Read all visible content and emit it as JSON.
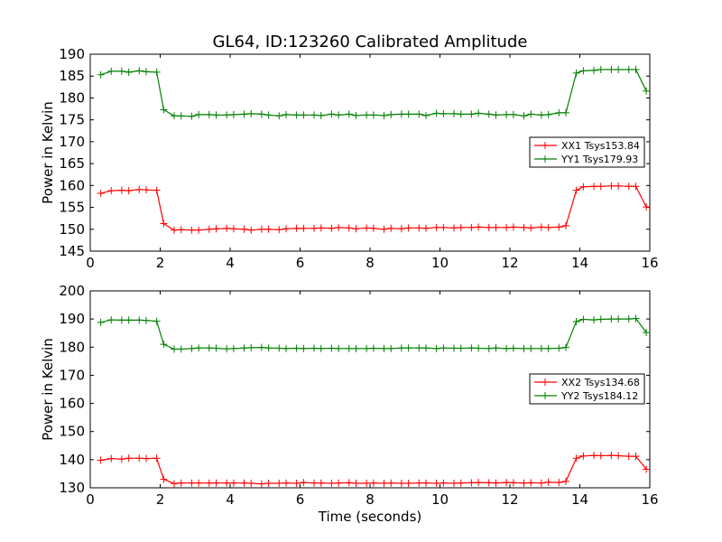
{
  "chart_data": [
    {
      "type": "line",
      "title": "GL64, ID:123260 Calibrated Amplitude",
      "xlabel": "",
      "ylabel": "Power in Kelvin",
      "xlim": [
        0,
        16
      ],
      "ylim": [
        145,
        190
      ],
      "xticks": [
        "0",
        "2",
        "4",
        "6",
        "8",
        "10",
        "12",
        "14",
        "16"
      ],
      "yticks": [
        "145",
        "150",
        "155",
        "160",
        "165",
        "170",
        "175",
        "180",
        "185",
        "190"
      ],
      "legend_position": "center-right",
      "series": [
        {
          "name": "XX1 Tsys153.84",
          "color": "#ff0000",
          "x": [
            0.3,
            0.6,
            0.9,
            1.1,
            1.4,
            1.6,
            1.9,
            2.1,
            2.4,
            2.6,
            2.9,
            3.1,
            3.4,
            3.6,
            3.9,
            4.1,
            4.4,
            4.6,
            4.9,
            5.1,
            5.4,
            5.6,
            5.9,
            6.1,
            6.4,
            6.6,
            6.9,
            7.1,
            7.4,
            7.6,
            7.9,
            8.1,
            8.4,
            8.6,
            8.9,
            9.1,
            9.4,
            9.6,
            9.9,
            10.1,
            10.4,
            10.6,
            10.9,
            11.1,
            11.4,
            11.6,
            11.9,
            12.1,
            12.4,
            12.6,
            12.9,
            13.1,
            13.4,
            13.6,
            13.9,
            14.1,
            14.4,
            14.6,
            14.9,
            15.1,
            15.4,
            15.6,
            15.9
          ],
          "y": [
            158.2,
            158.8,
            158.9,
            158.8,
            159.1,
            159.0,
            158.9,
            151.3,
            149.8,
            149.9,
            149.8,
            149.8,
            150.0,
            150.1,
            150.2,
            150.1,
            150.0,
            149.8,
            150.0,
            150.0,
            149.9,
            150.1,
            150.2,
            150.2,
            150.2,
            150.3,
            150.2,
            150.4,
            150.3,
            150.1,
            150.3,
            150.2,
            150.0,
            150.2,
            150.1,
            150.3,
            150.3,
            150.2,
            150.4,
            150.4,
            150.3,
            150.4,
            150.4,
            150.5,
            150.4,
            150.4,
            150.4,
            150.5,
            150.4,
            150.3,
            150.5,
            150.4,
            150.5,
            150.8,
            158.9,
            159.7,
            159.8,
            159.8,
            159.9,
            159.9,
            159.8,
            159.8,
            155.1
          ]
        },
        {
          "name": "YY1 Tsys179.93",
          "color": "#008000",
          "x": [
            0.3,
            0.6,
            0.9,
            1.1,
            1.4,
            1.6,
            1.9,
            2.1,
            2.4,
            2.6,
            2.9,
            3.1,
            3.4,
            3.6,
            3.9,
            4.1,
            4.4,
            4.6,
            4.9,
            5.1,
            5.4,
            5.6,
            5.9,
            6.1,
            6.4,
            6.6,
            6.9,
            7.1,
            7.4,
            7.6,
            7.9,
            8.1,
            8.4,
            8.6,
            8.9,
            9.1,
            9.4,
            9.6,
            9.9,
            10.1,
            10.4,
            10.6,
            10.9,
            11.1,
            11.4,
            11.6,
            11.9,
            12.1,
            12.4,
            12.6,
            12.9,
            13.1,
            13.4,
            13.6,
            13.9,
            14.1,
            14.4,
            14.6,
            14.9,
            15.1,
            15.4,
            15.6,
            15.9
          ],
          "y": [
            185.3,
            186.1,
            186.1,
            185.9,
            186.2,
            186.0,
            185.9,
            177.3,
            175.9,
            175.9,
            175.8,
            176.2,
            176.2,
            176.1,
            176.1,
            176.2,
            176.3,
            176.4,
            176.3,
            176.1,
            175.9,
            176.2,
            176.1,
            176.1,
            176.1,
            176.0,
            176.3,
            176.1,
            176.3,
            176.0,
            176.1,
            176.1,
            176.0,
            176.2,
            176.3,
            176.3,
            176.3,
            176.0,
            176.5,
            176.4,
            176.4,
            176.3,
            176.3,
            176.5,
            176.3,
            176.1,
            176.2,
            176.2,
            175.9,
            176.3,
            176.1,
            176.2,
            176.6,
            176.6,
            185.7,
            186.2,
            186.3,
            186.5,
            186.5,
            186.5,
            186.5,
            186.5,
            181.6
          ]
        }
      ]
    },
    {
      "type": "line",
      "title": "",
      "xlabel": "Time (seconds)",
      "ylabel": "Power in Kelvin",
      "xlim": [
        0,
        16
      ],
      "ylim": [
        130,
        200
      ],
      "xticks": [
        "0",
        "2",
        "4",
        "6",
        "8",
        "10",
        "12",
        "14",
        "16"
      ],
      "yticks": [
        "130",
        "140",
        "150",
        "160",
        "170",
        "180",
        "190",
        "200"
      ],
      "legend_position": "center-right",
      "series": [
        {
          "name": "XX2 Tsys134.68",
          "color": "#ff0000",
          "x": [
            0.3,
            0.6,
            0.9,
            1.1,
            1.4,
            1.6,
            1.9,
            2.1,
            2.4,
            2.6,
            2.9,
            3.1,
            3.4,
            3.6,
            3.9,
            4.1,
            4.4,
            4.6,
            4.9,
            5.1,
            5.4,
            5.6,
            5.9,
            6.1,
            6.4,
            6.6,
            6.9,
            7.1,
            7.4,
            7.6,
            7.9,
            8.1,
            8.4,
            8.6,
            8.9,
            9.1,
            9.4,
            9.6,
            9.9,
            10.1,
            10.4,
            10.6,
            10.9,
            11.1,
            11.4,
            11.6,
            11.9,
            12.1,
            12.4,
            12.6,
            12.9,
            13.1,
            13.4,
            13.6,
            13.9,
            14.1,
            14.4,
            14.6,
            14.9,
            15.1,
            15.4,
            15.6,
            15.9
          ],
          "y": [
            139.8,
            140.4,
            140.2,
            140.5,
            140.5,
            140.4,
            140.5,
            133.0,
            131.5,
            131.7,
            131.7,
            131.7,
            131.7,
            131.7,
            131.7,
            131.7,
            131.7,
            131.6,
            131.4,
            131.6,
            131.6,
            131.7,
            131.6,
            131.9,
            131.7,
            131.7,
            131.6,
            131.7,
            131.8,
            131.6,
            131.6,
            131.7,
            131.6,
            131.7,
            131.6,
            131.6,
            131.7,
            131.7,
            131.6,
            131.7,
            131.6,
            131.7,
            131.8,
            131.9,
            131.8,
            131.7,
            131.9,
            131.8,
            131.7,
            131.8,
            131.7,
            132.0,
            131.9,
            132.3,
            140.5,
            141.3,
            141.5,
            141.4,
            141.5,
            141.4,
            141.2,
            141.2,
            136.6
          ]
        },
        {
          "name": "YY2 Tsys184.12",
          "color": "#008000",
          "x": [
            0.3,
            0.6,
            0.9,
            1.1,
            1.4,
            1.6,
            1.9,
            2.1,
            2.4,
            2.6,
            2.9,
            3.1,
            3.4,
            3.6,
            3.9,
            4.1,
            4.4,
            4.6,
            4.9,
            5.1,
            5.4,
            5.6,
            5.9,
            6.1,
            6.4,
            6.6,
            6.9,
            7.1,
            7.4,
            7.6,
            7.9,
            8.1,
            8.4,
            8.6,
            8.9,
            9.1,
            9.4,
            9.6,
            9.9,
            10.1,
            10.4,
            10.6,
            10.9,
            11.1,
            11.4,
            11.6,
            11.9,
            12.1,
            12.4,
            12.6,
            12.9,
            13.1,
            13.4,
            13.6,
            13.9,
            14.1,
            14.4,
            14.6,
            14.9,
            15.1,
            15.4,
            15.6,
            15.9
          ],
          "y": [
            188.8,
            189.7,
            189.6,
            189.6,
            189.6,
            189.5,
            189.2,
            181.0,
            179.3,
            179.3,
            179.5,
            179.7,
            179.7,
            179.6,
            179.4,
            179.5,
            179.7,
            179.8,
            179.9,
            179.7,
            179.6,
            179.5,
            179.6,
            179.5,
            179.6,
            179.5,
            179.6,
            179.5,
            179.5,
            179.5,
            179.5,
            179.6,
            179.5,
            179.5,
            179.7,
            179.7,
            179.7,
            179.7,
            179.5,
            179.7,
            179.6,
            179.6,
            179.7,
            179.6,
            179.5,
            179.7,
            179.5,
            179.6,
            179.5,
            179.5,
            179.5,
            179.5,
            179.6,
            179.9,
            189.1,
            189.9,
            189.7,
            189.9,
            190.0,
            190.0,
            190.0,
            190.2,
            185.2
          ]
        }
      ]
    }
  ]
}
